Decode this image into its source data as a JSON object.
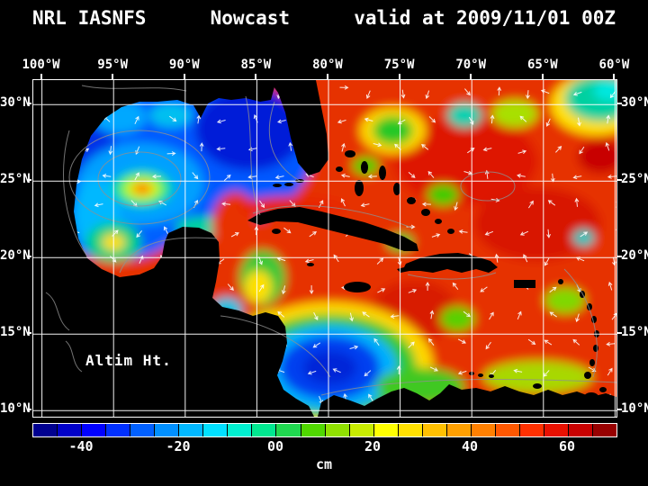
{
  "title": {
    "left": "NRL IASNFS",
    "center": "Nowcast",
    "right": "valid at 2009/11/01 00Z"
  },
  "map": {
    "variable_label": "Altim Ht."
  },
  "axes": {
    "lon": {
      "labels": [
        "100°W",
        "95°W",
        "90°W",
        "85°W",
        "80°W",
        "75°W",
        "70°W",
        "65°W",
        "60°W"
      ],
      "values": [
        100,
        95,
        90,
        85,
        80,
        75,
        70,
        65,
        60
      ]
    },
    "lat": {
      "labels": [
        "30°N",
        "25°N",
        "20°N",
        "15°N",
        "10°N"
      ],
      "values": [
        30,
        25,
        20,
        15,
        10
      ]
    }
  },
  "colorbar": {
    "unit": "cm",
    "range": {
      "min": -50,
      "max": 70
    },
    "ticks": [
      {
        "label": "-40",
        "value": -40
      },
      {
        "label": "-20",
        "value": -20
      },
      {
        "label": "00",
        "value": 0
      },
      {
        "label": "20",
        "value": 20
      },
      {
        "label": "40",
        "value": 40
      },
      {
        "label": "60",
        "value": 60
      }
    ],
    "segments": [
      "#000090",
      "#0000c8",
      "#0000ff",
      "#0030ff",
      "#0060ff",
      "#0090ff",
      "#00b8ff",
      "#00e0ff",
      "#00f0d0",
      "#00e890",
      "#20d850",
      "#50d800",
      "#90e000",
      "#c8ec00",
      "#ffff00",
      "#ffe000",
      "#ffc000",
      "#ffa000",
      "#ff8000",
      "#ff5800",
      "#ff3000",
      "#e81000",
      "#c80000",
      "#980000"
    ]
  },
  "field": {
    "base_color": "#e63000",
    "blobs": [
      [
        91.8,
        26.9,
        10.7,
        5.9,
        "#0058ff"
      ],
      [
        94.9,
        23.9,
        5.7,
        4.1,
        "#0060ff"
      ],
      [
        96.8,
        27.2,
        1.9,
        1.8,
        "#0030e8"
      ],
      [
        85.5,
        28.4,
        3.8,
        2.7,
        "#001cd8"
      ],
      [
        93.1,
        24.8,
        4.4,
        2.7,
        "#00a0ff"
      ],
      [
        94.6,
        29.2,
        1.9,
        1.1,
        "#00a8ff"
      ],
      [
        91.0,
        29.3,
        1.5,
        0.8,
        "#00c0f0"
      ],
      [
        96.2,
        22.8,
        1.6,
        2.4,
        "#00b8ff"
      ],
      [
        93.0,
        24.5,
        2.1,
        1.2,
        "#00e090"
      ],
      [
        93.0,
        24.5,
        1.4,
        0.8,
        "#a8ff00"
      ],
      [
        93.0,
        24.5,
        0.9,
        0.5,
        "#ffd000"
      ],
      [
        93.0,
        24.5,
        0.45,
        0.28,
        "#ff3800"
      ],
      [
        95.0,
        21.0,
        1.9,
        1.3,
        "#00d080"
      ],
      [
        95.0,
        21.0,
        0.8,
        0.55,
        "#ffe000"
      ],
      [
        88.5,
        22.0,
        2.2,
        0.7,
        "#00d0a0"
      ],
      [
        86.5,
        22.2,
        1.6,
        2.1,
        "#e83000"
      ],
      [
        82.5,
        23.3,
        3.8,
        0.7,
        "#e82800"
      ],
      [
        70.4,
        26.3,
        5.0,
        2.9,
        "#de1800"
      ],
      [
        65.4,
        22.2,
        4.4,
        2.4,
        "#d81800"
      ],
      [
        74.0,
        16.5,
        3.0,
        2.0,
        "#d81c00"
      ],
      [
        75.5,
        28.3,
        2.3,
        1.5,
        "#ffd800"
      ],
      [
        75.5,
        28.3,
        1.4,
        0.95,
        "#28c828"
      ],
      [
        70.5,
        29.3,
        1.2,
        0.8,
        "#00d0b0"
      ],
      [
        61.3,
        30.0,
        3.2,
        2.0,
        "#ffe000"
      ],
      [
        61.0,
        30.4,
        2.5,
        1.5,
        "#00d0a0"
      ],
      [
        60.4,
        30.9,
        1.1,
        0.65,
        "#00e8e0"
      ],
      [
        67.0,
        29.4,
        1.6,
        0.9,
        "#a8e000"
      ],
      [
        61.0,
        26.6,
        1.6,
        1.1,
        "#c80000"
      ],
      [
        72.0,
        24.1,
        1.1,
        0.7,
        "#40cc00"
      ],
      [
        77.4,
        26.0,
        0.95,
        0.6,
        "#50cc00"
      ],
      [
        75.0,
        21.0,
        0.95,
        0.6,
        "#30c830"
      ],
      [
        62.2,
        21.3,
        0.75,
        0.55,
        "#00c8c0"
      ],
      [
        63.5,
        17.2,
        1.4,
        0.85,
        "#80d800"
      ],
      [
        84.6,
        18.7,
        1.6,
        1.8,
        "#38c838"
      ],
      [
        84.9,
        18.1,
        0.95,
        1.05,
        "#ffe000"
      ],
      [
        87.1,
        16.6,
        1.1,
        0.8,
        "#00c0e0"
      ],
      [
        83.6,
        15.1,
        2.5,
        1.5,
        "#c8e000"
      ],
      [
        79.9,
        12.9,
        7.2,
        4.2,
        "#ffd800"
      ],
      [
        79.9,
        12.9,
        6.0,
        3.4,
        "#30c830"
      ],
      [
        79.9,
        12.8,
        4.7,
        2.8,
        "#00b0ff"
      ],
      [
        79.9,
        12.8,
        3.5,
        2.1,
        "#0040f0"
      ],
      [
        79.9,
        12.8,
        1.9,
        1.1,
        "#0028d8"
      ],
      [
        73.6,
        11.6,
        3.1,
        1.2,
        "#40c820"
      ],
      [
        65.4,
        12.2,
        3.8,
        1.05,
        "#a8d800"
      ],
      [
        71.0,
        16.0,
        1.2,
        0.8,
        "#58d000"
      ]
    ]
  }
}
